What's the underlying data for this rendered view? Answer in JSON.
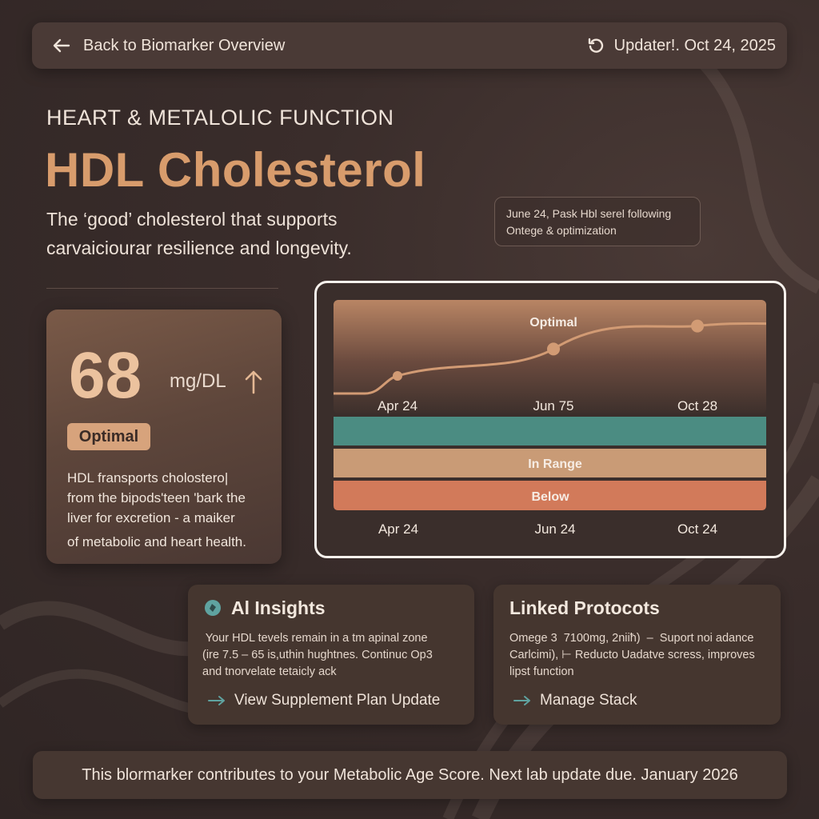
{
  "header": {
    "back_label": "Back to Biomarker Overview",
    "updated_label": "Updater!. Oct 24, 2025"
  },
  "category": "HEART & METALOLIC FUNCTION",
  "title": "HDL Cholesterol",
  "subtitle_lines": [
    "The ‘good’ cholesterol that supports",
    "carvaiciourar resilience and longevity."
  ],
  "tooltip": {
    "line1": "June 24, Pask Hbl serel following",
    "line2": "Ontege & optimization"
  },
  "value_card": {
    "value": "68",
    "unit": "mg/DL",
    "status": "Optimal",
    "description_lines": [
      "HDL fransports cholostero|",
      "from the bipods'teen 'bark the",
      "liver for excretion - a maiker",
      "of metabolic and heart health."
    ]
  },
  "chart_data": {
    "type": "line",
    "bands": [
      "Optimal",
      "In Range",
      "Below"
    ],
    "band_colors": {
      "Optimal": "#b98564",
      "teal": "#4b8c82",
      "In Range": "#c99b76",
      "Below": "#d27a5a"
    },
    "line_color": "#d29b74",
    "upper_x_labels": [
      "Apr 24",
      "Jun 75",
      "Oct 28"
    ],
    "x_labels": [
      "Apr 24",
      "Jun 24",
      "Oct 24"
    ],
    "x": [
      "Apr 24",
      "Jun 24",
      "Oct 24"
    ],
    "y": [
      55,
      62,
      68
    ],
    "ylim": [
      50,
      70
    ],
    "grid": false
  },
  "ai_insights": {
    "title": "Al Insights",
    "body_lines": [
      " Your HDL tevels remain in a tm apinal zone",
      "(ire 7.5 – 65 is,uthin hughtnes. Continuc Op3",
      "and tnorvelate tetaicly ack"
    ],
    "link_label": "View Supplement Plan Update"
  },
  "linked_protocols": {
    "title": "Linked Protocots",
    "body_lines": [
      "Omege 3  7100mg, 2niiħ)  –  Suport noi adance",
      "Carlcimi), ⊢ Reducto Uadatve scress, improves",
      "lipst function"
    ],
    "link_label": "Manage Stack"
  },
  "footer_text": "This blormarker contributes to your Metabolic Age Score. Next lab update due. January 2026",
  "colors": {
    "accent": "#d89c6c",
    "teal_icon": "#5fa3a0"
  }
}
